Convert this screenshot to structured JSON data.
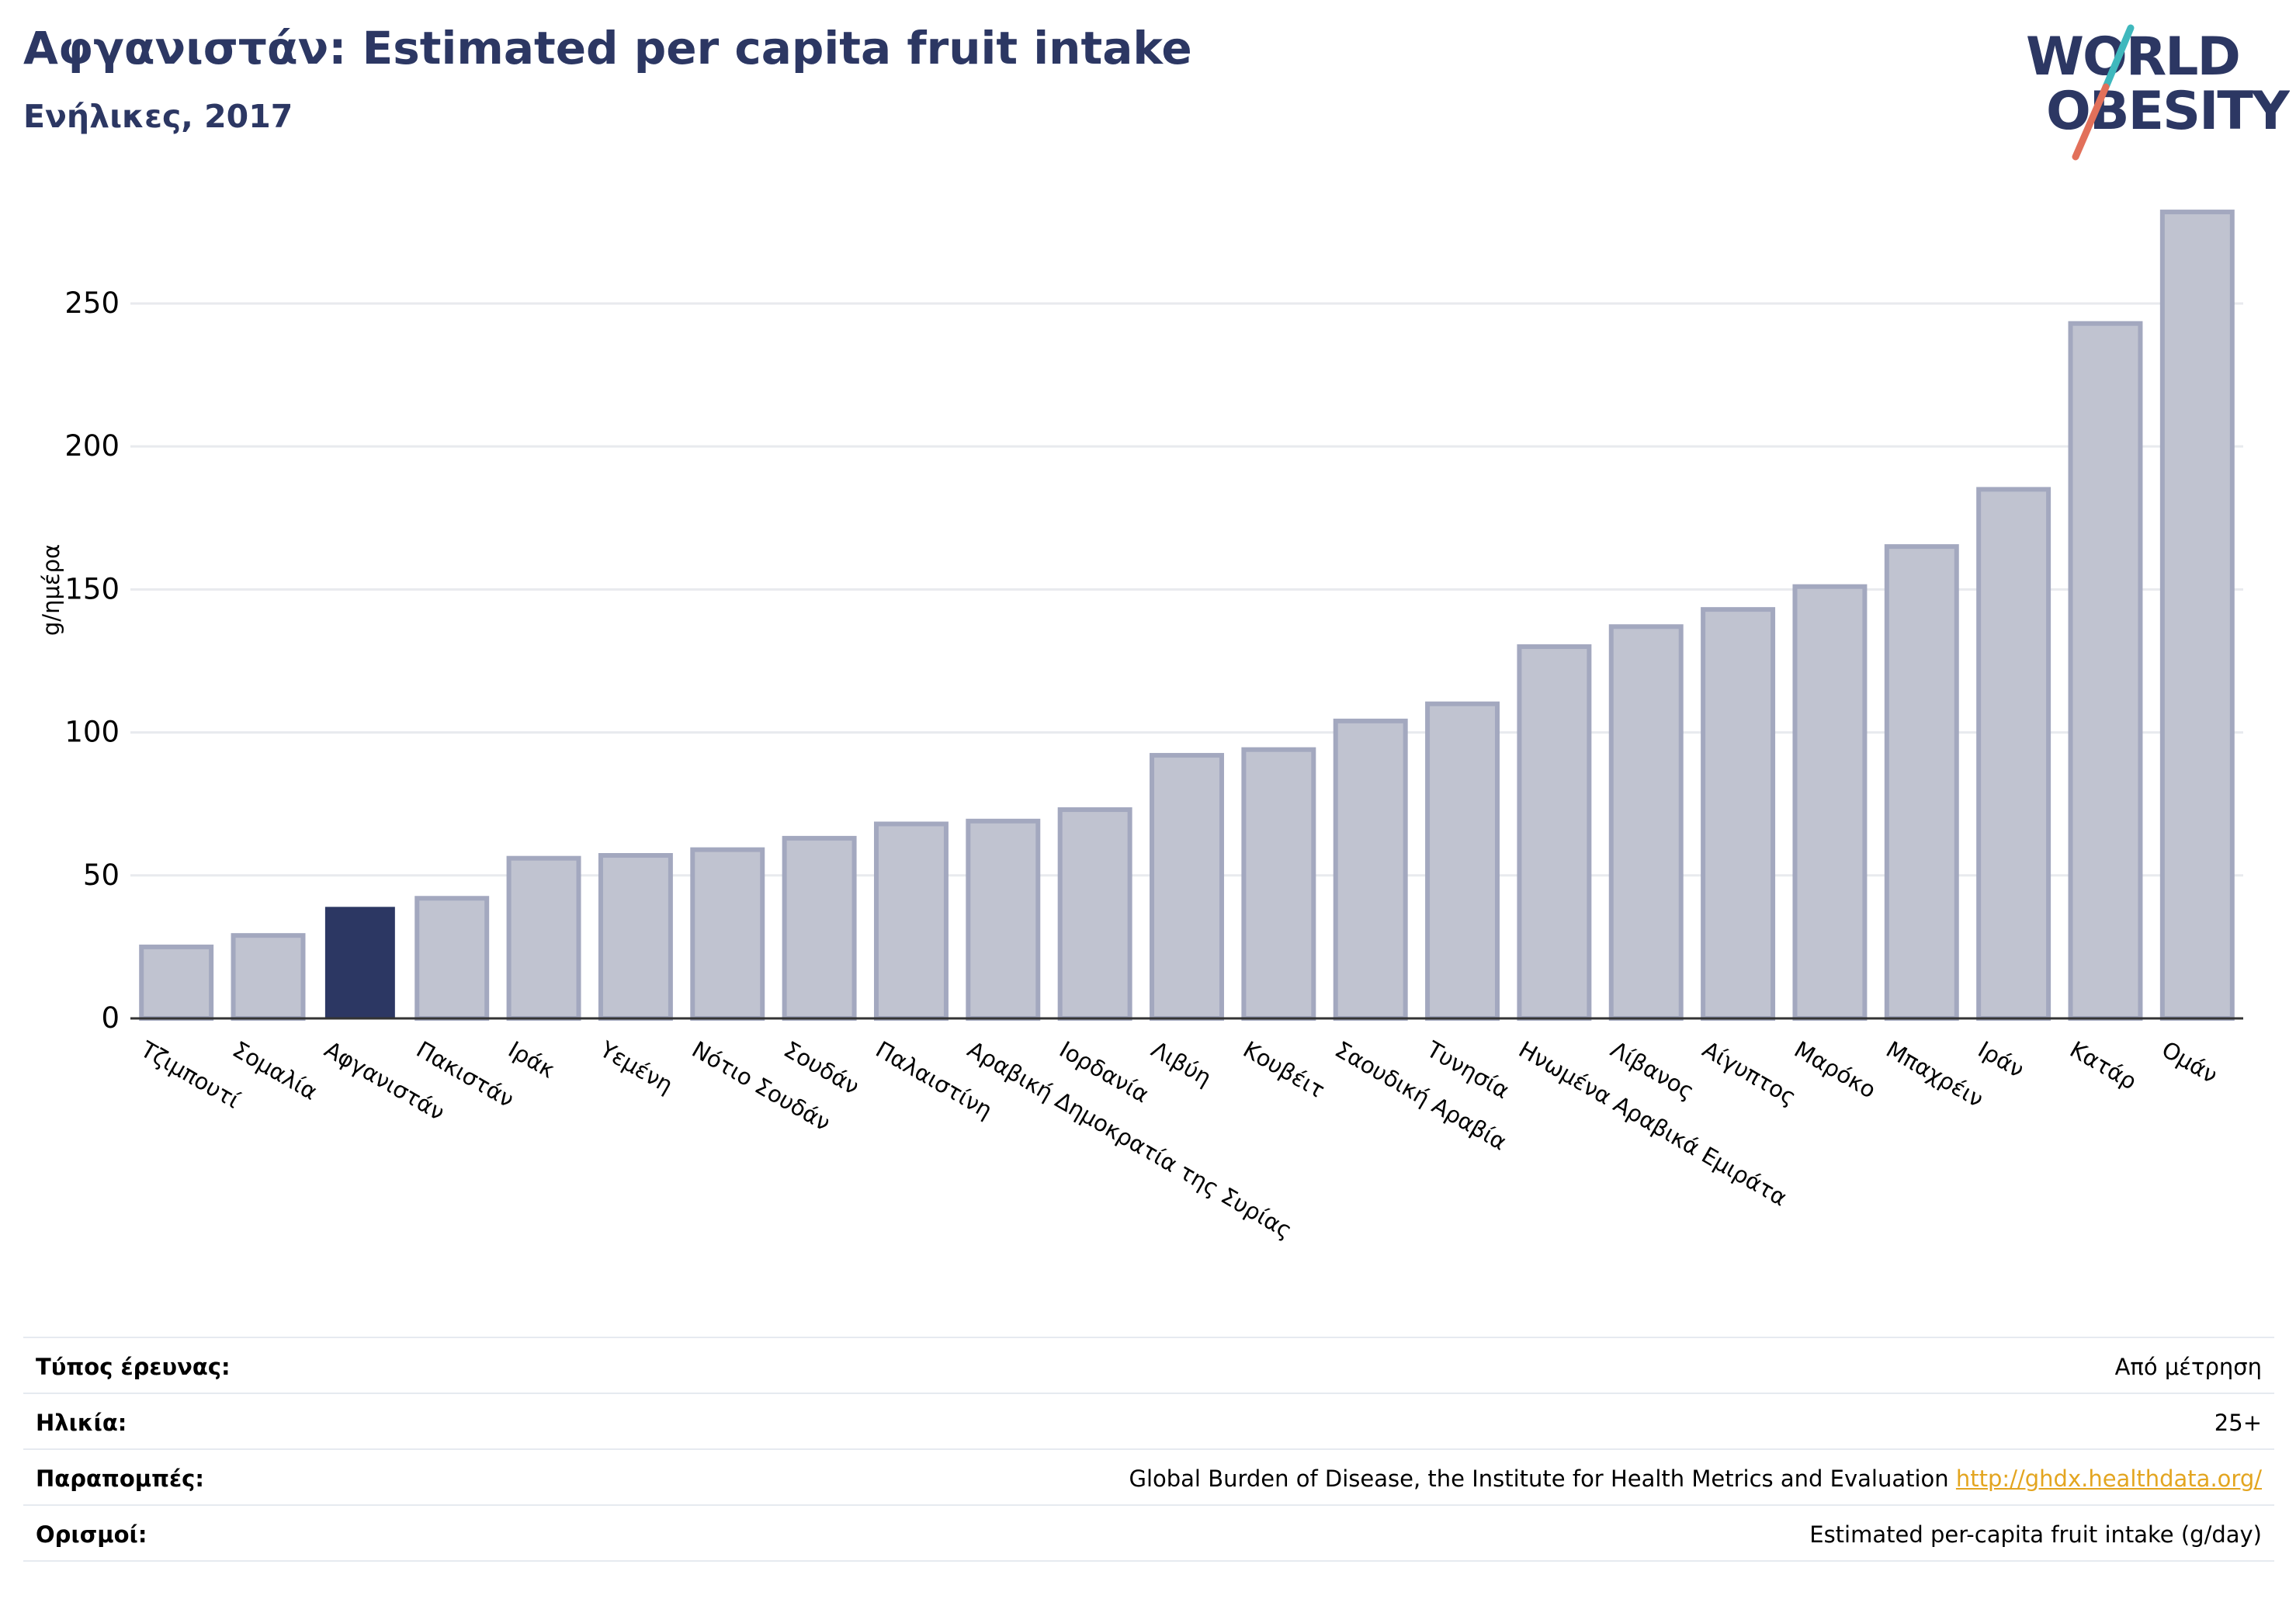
{
  "header": {
    "title": "Αφγανιστάν: Estimated per capita fruit intake",
    "subtitle": "Ενήλικες, 2017"
  },
  "logo": {
    "line1": "WORLD",
    "line2": "OBESITY",
    "text_color": "#2c3763",
    "slash_top_color": "#3fb8bd",
    "slash_bottom_color": "#e2705a"
  },
  "colors": {
    "bar_default": "#c0c3d0",
    "bar_default_border": "#a3a8bf",
    "bar_highlight": "#2c3763",
    "grid": "#e8eaee",
    "axis": "#333333"
  },
  "chart_data": {
    "type": "bar",
    "title": "Αφγανιστάν: Estimated per capita fruit intake",
    "subtitle": "Ενήλικες, 2017",
    "xlabel": "",
    "ylabel": "g/ημέρα",
    "ylim": [
      0,
      285
    ],
    "yticks": [
      0,
      50,
      100,
      150,
      200,
      250
    ],
    "grid": true,
    "highlight": "Αφγανιστάν",
    "categories": [
      "Τζιμπουτί",
      "Σομαλία",
      "Αφγανιστάν",
      "Πακιστάν",
      "Ιράκ",
      "Υεμένη",
      "Νότιο Σουδάν",
      "Σουδάν",
      "Παλαιστίνη",
      "Αραβική Δημοκρατία της Συρίας",
      "Ιορδανία",
      "Λιβύη",
      "Κουβέιτ",
      "Σαουδική Αραβία",
      "Τυνησία",
      "Ηνωμένα Αραβικά Εμιράτα",
      "Λίβανος",
      "Αίγυπτος",
      "Μαρόκο",
      "Μπαχρέιν",
      "Ιράν",
      "Κατάρ",
      "Ομάν"
    ],
    "values": [
      25,
      29,
      39,
      42,
      56,
      57,
      59,
      63,
      68,
      69,
      73,
      92,
      94,
      104,
      110,
      130,
      137,
      143,
      151,
      165,
      185,
      243,
      282
    ]
  },
  "info": {
    "rows": [
      {
        "label": "Τύπος έρευνας:",
        "value": "Από μέτρηση"
      },
      {
        "label": "Ηλικία:",
        "value": "25+"
      },
      {
        "label": "Παραπομπές:",
        "value": "Global Burden of Disease, the Institute for Health Metrics and Evaluation",
        "link": "http://ghdx.healthdata.org/"
      },
      {
        "label": "Ορισμοί:",
        "value": "Estimated per-capita fruit intake (g/day)"
      }
    ]
  }
}
